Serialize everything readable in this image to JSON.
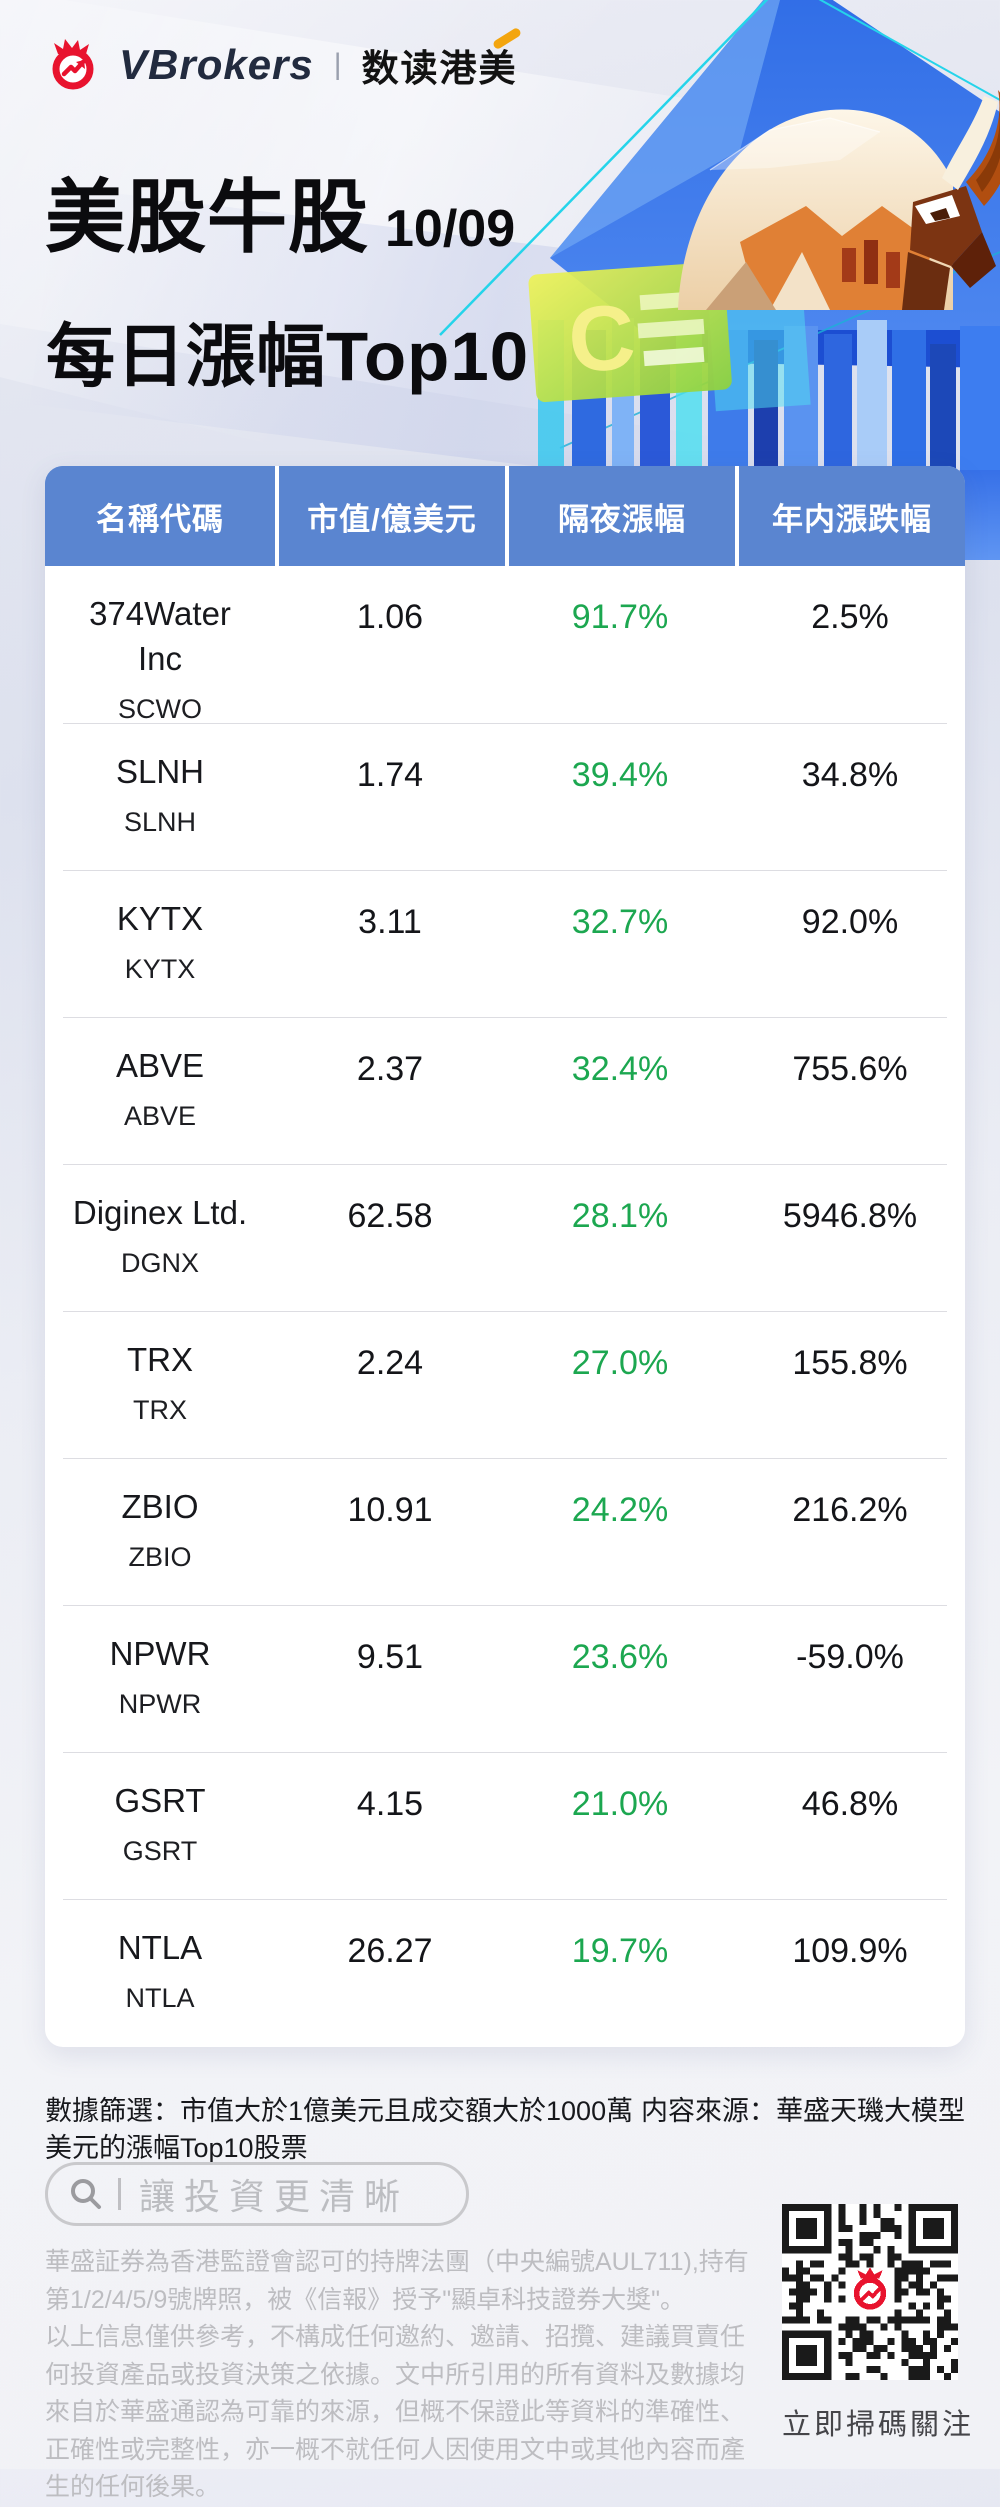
{
  "header": {
    "brand": "VBrokers",
    "brand_divider": "|",
    "brand_sub": "数读港美",
    "title": "美股牛股",
    "date": "10/09",
    "subtitle": "每日漲幅Top10",
    "sign_letter": "C"
  },
  "table": {
    "columns": [
      "名稱代碼",
      "市值/億美元",
      "隔夜漲幅",
      "年内漲跌幅"
    ],
    "rows": [
      {
        "name": "374Water\nInc",
        "ticker": "SCWO",
        "cap": "1.06",
        "overnight": "91.7%",
        "ytd": "2.5%"
      },
      {
        "name": "SLNH",
        "ticker": "SLNH",
        "cap": "1.74",
        "overnight": "39.4%",
        "ytd": "34.8%"
      },
      {
        "name": "KYTX",
        "ticker": "KYTX",
        "cap": "3.11",
        "overnight": "32.7%",
        "ytd": "92.0%"
      },
      {
        "name": "ABVE",
        "ticker": "ABVE",
        "cap": "2.37",
        "overnight": "32.4%",
        "ytd": "755.6%"
      },
      {
        "name": "Diginex Ltd.",
        "ticker": "DGNX",
        "cap": "62.58",
        "overnight": "28.1%",
        "ytd": "5946.8%"
      },
      {
        "name": "TRX",
        "ticker": "TRX",
        "cap": "2.24",
        "overnight": "27.0%",
        "ytd": "155.8%"
      },
      {
        "name": "ZBIO",
        "ticker": "ZBIO",
        "cap": "10.91",
        "overnight": "24.2%",
        "ytd": "216.2%"
      },
      {
        "name": "NPWR",
        "ticker": "NPWR",
        "cap": "9.51",
        "overnight": "23.6%",
        "ytd": "-59.0%"
      },
      {
        "name": "GSRT",
        "ticker": "GSRT",
        "cap": "4.15",
        "overnight": "21.0%",
        "ytd": "46.8%"
      },
      {
        "name": "NTLA",
        "ticker": "NTLA",
        "cap": "26.27",
        "overnight": "19.7%",
        "ytd": "109.9%"
      }
    ]
  },
  "chart_data": {
    "type": "table",
    "title": "美股牛股 10/09 每日漲幅Top10",
    "columns": [
      "名稱代碼",
      "代碼",
      "市值/億美元",
      "隔夜漲幅",
      "年内漲跌幅"
    ],
    "rows": [
      [
        "374Water Inc",
        "SCWO",
        1.06,
        "91.7%",
        "2.5%"
      ],
      [
        "SLNH",
        "SLNH",
        1.74,
        "39.4%",
        "34.8%"
      ],
      [
        "KYTX",
        "KYTX",
        3.11,
        "32.7%",
        "92.0%"
      ],
      [
        "ABVE",
        "ABVE",
        2.37,
        "32.4%",
        "755.6%"
      ],
      [
        "Diginex Ltd.",
        "DGNX",
        62.58,
        "28.1%",
        "5946.8%"
      ],
      [
        "TRX",
        "TRX",
        2.24,
        "27.0%",
        "155.8%"
      ],
      [
        "ZBIO",
        "ZBIO",
        10.91,
        "24.2%",
        "216.2%"
      ],
      [
        "NPWR",
        "NPWR",
        9.51,
        "23.6%",
        "-59.0%"
      ],
      [
        "GSRT",
        "GSRT",
        4.15,
        "21.0%",
        "46.8%"
      ],
      [
        "NTLA",
        "NTLA",
        26.27,
        "19.7%",
        "109.9%"
      ]
    ]
  },
  "footer": {
    "filter_note": "數據篩選：市值大於1億美元且成交額大於1000萬美元的漲幅Top10股票",
    "source_note": "内容來源：華盛天璣大模型",
    "search_placeholder": "讓投資更清晰",
    "disclaimer1": "華盛証券為香港監證會認可的持牌法團（中央編號AUL711),持有第1/2/4/5/9號牌照，被《信報》授予\"顯卓科技證券大獎\"。",
    "disclaimer2": "以上信息僅供參考，不構成任何邀約、邀請、招攬、建議買賣任何投資產品或投資決策之依據。文中所引用的所有資料及數據均來自於華盛通認為可靠的來源，但概不保證此等資料的準確性、正確性或完整性，亦一概不就任何人因使用文中或其他內容而產生的任何後果。",
    "qr_caption": "立即掃碼關注"
  },
  "colors": {
    "header_blue": "#5a85d0",
    "gain_green": "#1ca750",
    "brand_red": "#e8132e",
    "sign_yellow": "#d9e44e"
  }
}
